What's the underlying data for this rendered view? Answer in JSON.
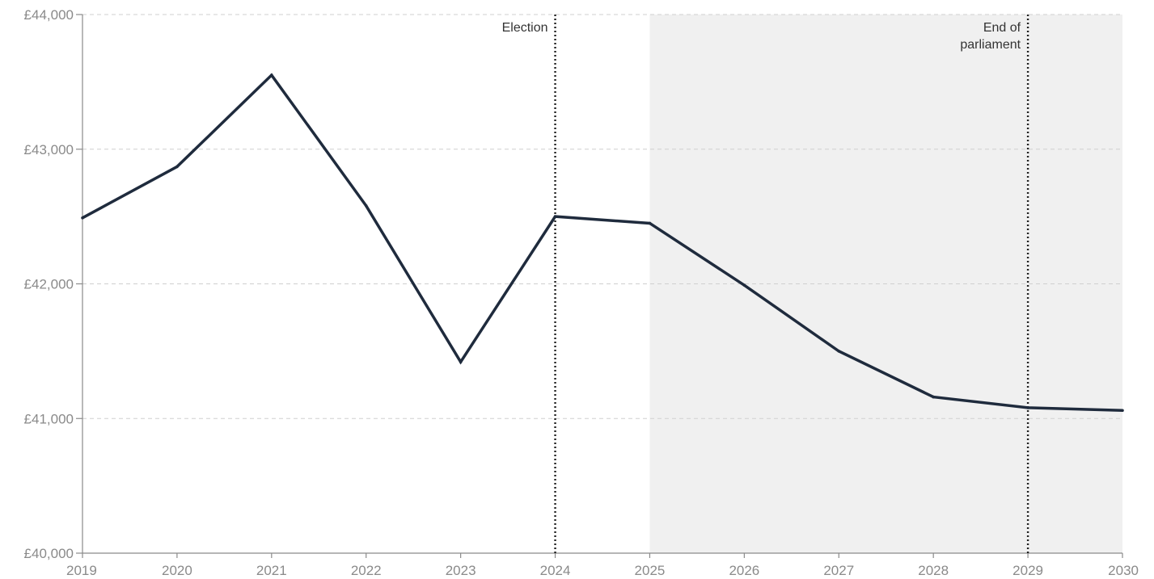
{
  "chart_data": {
    "type": "line",
    "title": "",
    "xlabel": "",
    "ylabel": "",
    "x": [
      2019,
      2020,
      2021,
      2022,
      2023,
      2024,
      2025,
      2026,
      2027,
      2028,
      2029,
      2030
    ],
    "series": [
      {
        "values": [
          42490,
          42870,
          43550,
          42580,
          41420,
          42500,
          42450,
          41990,
          41500,
          41160,
          41080,
          41060
        ],
        "color": "#1f2b3d"
      }
    ],
    "xlim": [
      2019,
      2030
    ],
    "ylim": [
      40000,
      44000
    ],
    "x_ticks": [
      "2019",
      "2020",
      "2021",
      "2022",
      "2023",
      "2024",
      "2025",
      "2026",
      "2027",
      "2028",
      "2029",
      "2030"
    ],
    "y_ticks": [
      {
        "value": 40000,
        "label": "£40,000"
      },
      {
        "value": 41000,
        "label": "£41,000"
      },
      {
        "value": 42000,
        "label": "£42,000"
      },
      {
        "value": 43000,
        "label": "£43,000"
      },
      {
        "value": 44000,
        "label": "£44,000"
      }
    ],
    "grid": "horizontal dashed",
    "shaded_region": {
      "from": 2025,
      "to": 2030,
      "color": "#f0f0f0"
    },
    "annotations": [
      {
        "x": 2024,
        "label_lines": [
          "Election"
        ]
      },
      {
        "x": 2029,
        "label_lines": [
          "End of",
          "parliament"
        ]
      }
    ]
  }
}
